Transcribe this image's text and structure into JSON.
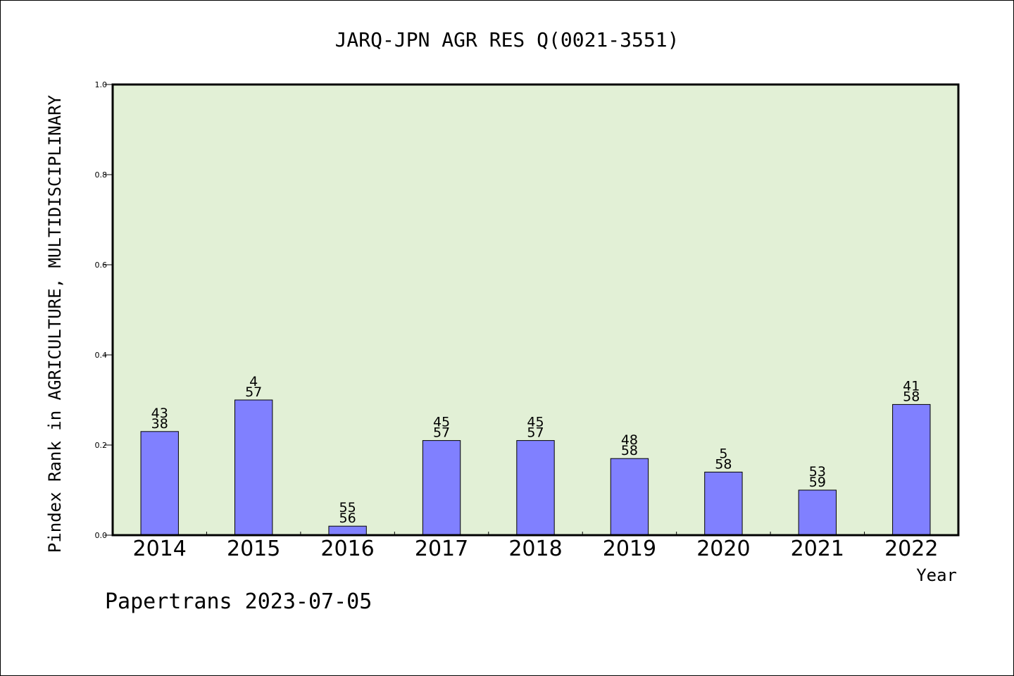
{
  "chart_data": {
    "type": "bar",
    "title": "JARQ-JPN AGR RES Q(0021-3551)",
    "xlabel": "Year",
    "ylabel": "Pindex Rank in AGRICULTURE, MULTIDISCIPLINARY",
    "categories": [
      "2014",
      "2015",
      "2016",
      "2017",
      "2018",
      "2019",
      "2020",
      "2021",
      "2022"
    ],
    "values": [
      0.23,
      0.3,
      0.02,
      0.21,
      0.21,
      0.17,
      0.14,
      0.1,
      0.29
    ],
    "rank_labels": [
      "43",
      "4",
      "55",
      "45",
      "45",
      "48",
      "5",
      "53",
      "41"
    ],
    "total_labels": [
      "38",
      "57",
      "56",
      "57",
      "57",
      "58",
      "58",
      "59",
      "58"
    ],
    "ylim": [
      0.0,
      1.0
    ],
    "yticks": [
      "0.0",
      "0.2",
      "0.4",
      "0.6",
      "0.8",
      "1.0"
    ],
    "grid": false,
    "colors": {
      "bar": "#8080ff",
      "plot_background": "#e2f0d6",
      "axis": "#000000"
    }
  },
  "footer": {
    "credit": "Papertrans 2023-07-05"
  }
}
